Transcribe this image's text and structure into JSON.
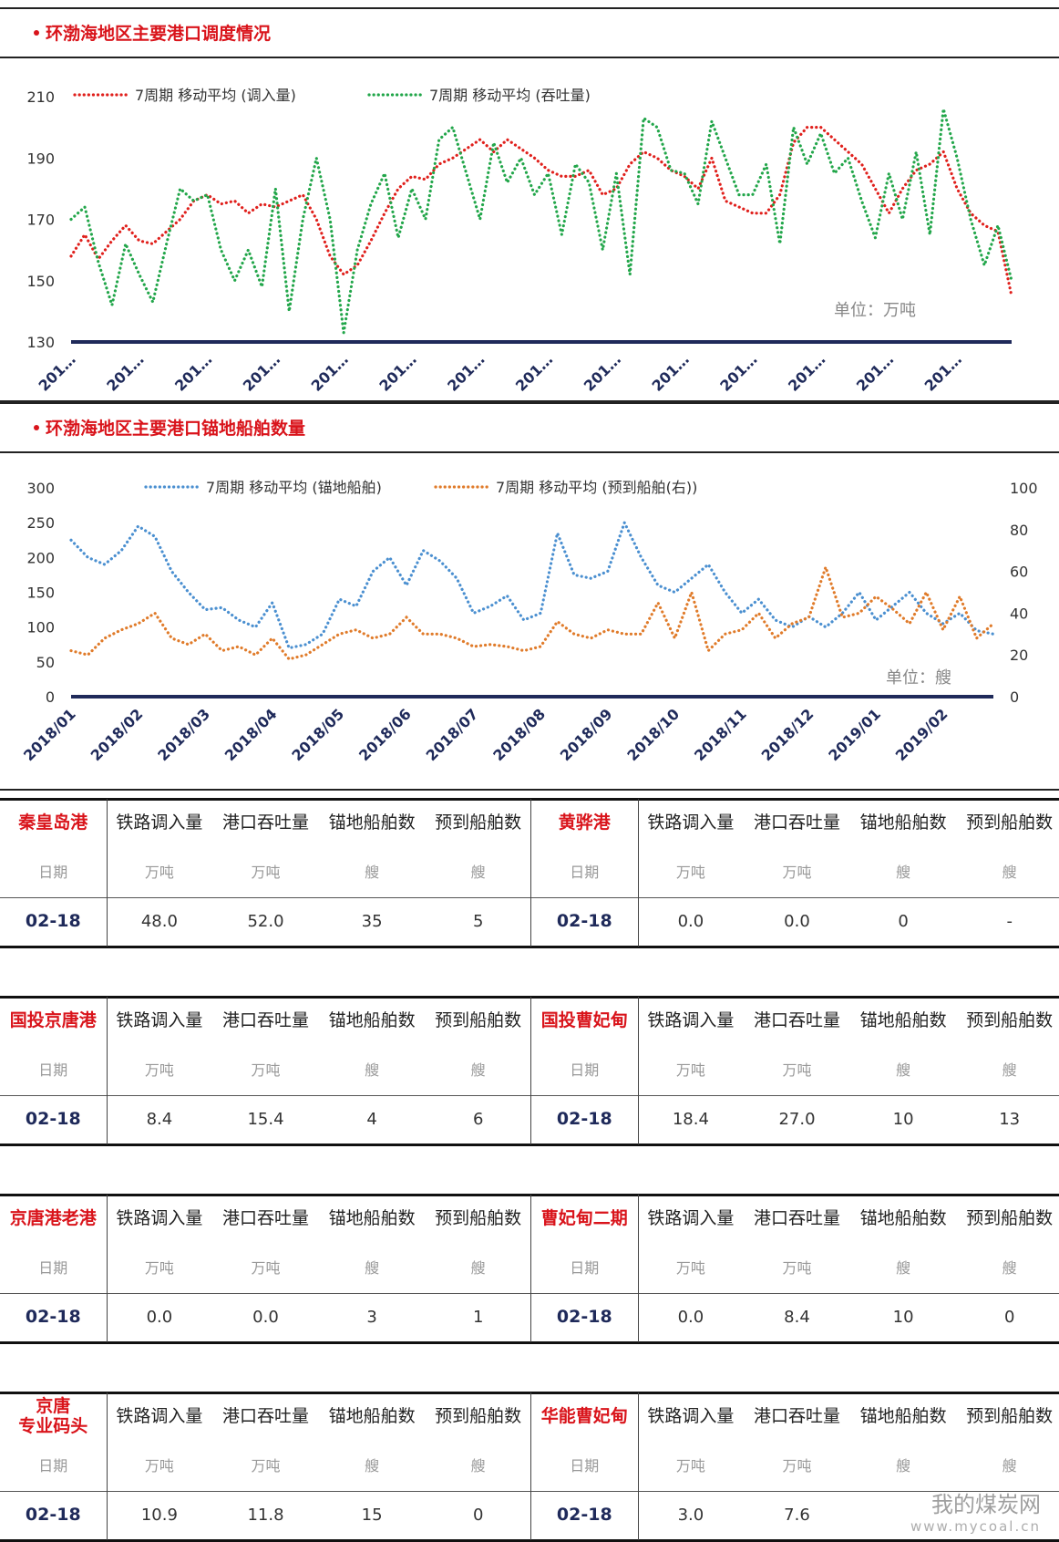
{
  "chart_data": [
    {
      "type": "line",
      "title": "环渤海地区主要港口调度情况",
      "annotation": "单位：万吨",
      "categories": [
        "201…",
        null,
        null,
        null,
        null,
        "201…",
        null,
        null,
        null,
        null,
        "201…",
        null,
        null,
        null,
        null,
        "201…",
        null,
        null,
        null,
        null,
        "201…",
        null,
        null,
        null,
        null,
        "201…",
        null,
        null,
        null,
        null,
        "201…",
        null,
        null,
        null,
        null,
        "201…",
        null,
        null,
        null,
        null,
        "201…",
        null,
        null,
        null,
        null,
        "201…",
        null,
        null,
        null,
        null,
        "201…",
        null,
        null,
        null,
        null,
        "201…",
        null,
        null,
        null,
        null,
        "201…",
        null,
        null,
        null,
        null,
        "201…",
        null,
        null,
        null,
        null
      ],
      "series": [
        {
          "name": "7周期 移动平均 (调入量)",
          "color": "#e0201c",
          "values": [
            158,
            165,
            157,
            163,
            168,
            163,
            162,
            166,
            170,
            176,
            178,
            175,
            176,
            172,
            175,
            174,
            176,
            178,
            170,
            158,
            152,
            155,
            163,
            172,
            180,
            184,
            183,
            188,
            190,
            193,
            196,
            192,
            196,
            193,
            190,
            186,
            184,
            184,
            186,
            178,
            180,
            188,
            192,
            190,
            186,
            184,
            180,
            190,
            176,
            174,
            172,
            172,
            178,
            195,
            200,
            200,
            196,
            192,
            188,
            180,
            172,
            180,
            186,
            188,
            192,
            180,
            172,
            168,
            166,
            145
          ]
        },
        {
          "name": "7周期 移动平均 (吞吐量)",
          "color": "#22a64a",
          "values": [
            170,
            174,
            156,
            142,
            162,
            152,
            143,
            162,
            180,
            176,
            178,
            160,
            150,
            160,
            148,
            180,
            140,
            170,
            190,
            170,
            133,
            160,
            175,
            185,
            164,
            180,
            170,
            196,
            200,
            185,
            170,
            195,
            182,
            190,
            178,
            185,
            165,
            188,
            182,
            160,
            185,
            152,
            203,
            200,
            186,
            185,
            175,
            202,
            190,
            178,
            178,
            188,
            162,
            200,
            188,
            198,
            185,
            190,
            176,
            164,
            185,
            170,
            192,
            165,
            206,
            190,
            170,
            155,
            168,
            150
          ]
        }
      ],
      "ylim": [
        130,
        210
      ],
      "yticks": [
        130,
        150,
        170,
        190,
        210
      ]
    },
    {
      "type": "line",
      "title": "环渤海地区主要港口锚地船舶数量",
      "annotation": "单位：艘",
      "categories": [
        "2018/01",
        null,
        null,
        null,
        "2018/02",
        null,
        null,
        null,
        "2018/03",
        null,
        null,
        null,
        "2018/04",
        null,
        null,
        null,
        "2018/05",
        null,
        null,
        null,
        "2018/06",
        null,
        null,
        null,
        "2018/07",
        null,
        null,
        null,
        "2018/08",
        null,
        null,
        null,
        "2018/09",
        null,
        null,
        null,
        "2018/10",
        null,
        null,
        null,
        "2018/11",
        null,
        null,
        null,
        "2018/12",
        null,
        null,
        null,
        "2019/01",
        null,
        null,
        null,
        "2019/02",
        null,
        null,
        null
      ],
      "series": [
        {
          "name": "7周期 移动平均 (锚地船舶)",
          "color": "#4a8fd0",
          "values": [
            225,
            200,
            190,
            210,
            245,
            230,
            180,
            150,
            125,
            128,
            110,
            100,
            135,
            70,
            75,
            90,
            140,
            130,
            180,
            200,
            160,
            210,
            195,
            170,
            120,
            130,
            145,
            110,
            120,
            235,
            175,
            170,
            180,
            250,
            200,
            160,
            150,
            170,
            190,
            150,
            120,
            140,
            110,
            100,
            115,
            100,
            120,
            150,
            110,
            130,
            150,
            120,
            105,
            120,
            95,
            90
          ]
        },
        {
          "name": "7周期 移动平均 (预到船舶(右))",
          "color": "#e07b2a",
          "axis": "y2",
          "values": [
            22,
            20,
            28,
            32,
            35,
            40,
            28,
            25,
            30,
            22,
            24,
            20,
            28,
            18,
            20,
            25,
            30,
            32,
            28,
            30,
            38,
            30,
            30,
            28,
            24,
            25,
            24,
            22,
            24,
            36,
            30,
            28,
            32,
            30,
            30,
            45,
            28,
            50,
            22,
            30,
            32,
            40,
            28,
            35,
            38,
            62,
            38,
            40,
            48,
            42,
            35,
            50,
            32,
            48,
            28,
            35
          ]
        }
      ],
      "ylim": [
        0,
        300
      ],
      "yticks": [
        0,
        50,
        100,
        150,
        200,
        250,
        300
      ],
      "y2lim": [
        0,
        100
      ],
      "y2ticks": [
        0,
        20,
        40,
        60,
        80,
        100
      ]
    }
  ],
  "columns": [
    "铁路调入量",
    "港口吞吐量",
    "锚地船舶数",
    "预到船舶数"
  ],
  "units": [
    "日期",
    "万吨",
    "万吨",
    "艘",
    "艘"
  ],
  "tables": [
    {
      "name": "秦皇岛港",
      "date": "02-18",
      "values": [
        "48.0",
        "52.0",
        "35",
        "5"
      ]
    },
    {
      "name": "黄骅港",
      "date": "02-18",
      "values": [
        "0.0",
        "0.0",
        "0",
        "-"
      ]
    },
    {
      "name": "国投京唐港",
      "date": "02-18",
      "values": [
        "8.4",
        "15.4",
        "4",
        "6"
      ]
    },
    {
      "name": "国投曹妃甸",
      "date": "02-18",
      "values": [
        "18.4",
        "27.0",
        "10",
        "13"
      ]
    },
    {
      "name": "京唐港老港",
      "date": "02-18",
      "values": [
        "0.0",
        "0.0",
        "3",
        "1"
      ]
    },
    {
      "name": "曹妃甸二期",
      "date": "02-18",
      "values": [
        "0.0",
        "8.4",
        "10",
        "0"
      ]
    },
    {
      "name": "京唐\n专业码头",
      "date": "02-18",
      "values": [
        "10.9",
        "11.8",
        "15",
        "0"
      ]
    },
    {
      "name": "华能曹妃甸",
      "date": "02-18",
      "values": [
        "3.0",
        "7.6"
      ]
    }
  ],
  "watermark": {
    "title": "我的煤炭网",
    "url": "www.mycoal.cn"
  }
}
